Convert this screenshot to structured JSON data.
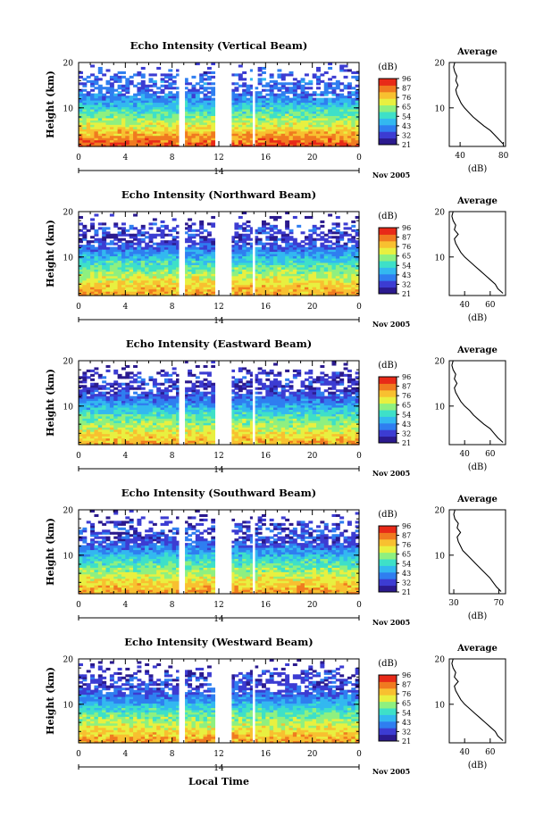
{
  "figure": {
    "x_axis_title": "Local Time",
    "date_label": "Nov 2005",
    "day_label": "14",
    "colorbar_unit": "(dB)",
    "colorbar_ticks": [
      "96",
      "87",
      "76",
      "65",
      "54",
      "43",
      "32",
      "21"
    ],
    "colorscale": [
      "#2b1a8e",
      "#3c3cd2",
      "#2f7ef0",
      "#33b8f0",
      "#3ee0c8",
      "#8ef080",
      "#e8f040",
      "#f8c030",
      "#f07a20",
      "#e82a18"
    ],
    "gap_color": "#ffffff"
  },
  "chart_data": [
    {
      "type": "heatmap",
      "title": "Echo Intensity (Vertical Beam)",
      "ylabel": "Height (km)",
      "x_ticks": [
        "0",
        "4",
        "8",
        "12",
        "16",
        "20",
        "0"
      ],
      "xlim": [
        0,
        24
      ],
      "y_ticks": [
        "20",
        "10"
      ],
      "ylim": [
        1.5,
        20
      ],
      "data_gaps_local_time": [
        [
          8.6,
          9.1
        ],
        [
          11.7,
          12.6
        ],
        [
          12.8,
          13.1
        ],
        [
          14.9,
          15.1
        ]
      ],
      "echo_db_by_height": {
        "height_km": [
          2,
          4,
          6,
          8,
          10,
          12,
          14,
          16,
          18,
          20
        ],
        "db": [
          88,
          80,
          70,
          62,
          52,
          42,
          36,
          38,
          34,
          30
        ]
      },
      "average_profile": {
        "title": "Average",
        "xlabel": "(dB)",
        "x_ticks": [
          "40",
          "80"
        ],
        "xlim": [
          30,
          82
        ],
        "y_ticks": [
          "20",
          "10"
        ],
        "points": [
          [
            80,
            2
          ],
          [
            76,
            3
          ],
          [
            72,
            4
          ],
          [
            68,
            5
          ],
          [
            62,
            6
          ],
          [
            57,
            7
          ],
          [
            52,
            8
          ],
          [
            48,
            9
          ],
          [
            44,
            10
          ],
          [
            41,
            11
          ],
          [
            39,
            12
          ],
          [
            37,
            13
          ],
          [
            36,
            14
          ],
          [
            38,
            15
          ],
          [
            36,
            16
          ],
          [
            37,
            17
          ],
          [
            35,
            18
          ],
          [
            34,
            19
          ],
          [
            35,
            20
          ]
        ]
      }
    },
    {
      "type": "heatmap",
      "title": "Echo Intensity (Northward Beam)",
      "ylabel": "Height (km)",
      "x_ticks": [
        "0",
        "4",
        "8",
        "12",
        "16",
        "20",
        "0"
      ],
      "xlim": [
        0,
        24
      ],
      "y_ticks": [
        "20",
        "10"
      ],
      "ylim": [
        1.5,
        20
      ],
      "data_gaps_local_time": [
        [
          8.6,
          9.1
        ],
        [
          11.7,
          12.6
        ],
        [
          12.8,
          13.1
        ],
        [
          14.9,
          15.1
        ]
      ],
      "echo_db_by_height": {
        "height_km": [
          2,
          4,
          6,
          8,
          10,
          12,
          14,
          16,
          18,
          20
        ],
        "db": [
          80,
          74,
          66,
          58,
          48,
          38,
          30,
          34,
          28,
          26
        ]
      },
      "average_profile": {
        "title": "Average",
        "xlabel": "(dB)",
        "x_ticks": [
          "40",
          "60"
        ],
        "xlim": [
          28,
          72
        ],
        "y_ticks": [
          "20",
          "10"
        ],
        "points": [
          [
            70,
            2
          ],
          [
            66,
            3
          ],
          [
            64,
            4
          ],
          [
            60,
            5
          ],
          [
            56,
            6
          ],
          [
            52,
            7
          ],
          [
            48,
            8
          ],
          [
            44,
            9
          ],
          [
            40,
            10
          ],
          [
            37,
            11
          ],
          [
            35,
            12
          ],
          [
            33,
            13
          ],
          [
            32,
            14
          ],
          [
            35,
            15
          ],
          [
            32,
            16
          ],
          [
            33,
            17
          ],
          [
            31,
            18
          ],
          [
            30,
            19
          ],
          [
            31,
            20
          ]
        ]
      }
    },
    {
      "type": "heatmap",
      "title": "Echo Intensity (Eastward Beam)",
      "ylabel": "Height (km)",
      "x_ticks": [
        "0",
        "4",
        "8",
        "12",
        "16",
        "20",
        "0"
      ],
      "xlim": [
        0,
        24
      ],
      "y_ticks": [
        "20",
        "10"
      ],
      "ylim": [
        1.5,
        20
      ],
      "data_gaps_local_time": [
        [
          8.6,
          9.1
        ],
        [
          11.7,
          12.6
        ],
        [
          12.8,
          13.1
        ],
        [
          14.9,
          15.1
        ]
      ],
      "echo_db_by_height": {
        "height_km": [
          2,
          4,
          6,
          8,
          10,
          12,
          14,
          16,
          18,
          20
        ],
        "db": [
          78,
          72,
          64,
          56,
          46,
          36,
          30,
          32,
          28,
          26
        ]
      },
      "average_profile": {
        "title": "Average",
        "xlabel": "(dB)",
        "x_ticks": [
          "40",
          "60"
        ],
        "xlim": [
          28,
          72
        ],
        "y_ticks": [
          "20",
          "10"
        ],
        "points": [
          [
            70,
            2
          ],
          [
            66,
            3
          ],
          [
            63,
            4
          ],
          [
            60,
            5
          ],
          [
            55,
            6
          ],
          [
            51,
            7
          ],
          [
            47,
            8
          ],
          [
            44,
            9
          ],
          [
            40,
            10
          ],
          [
            37,
            11
          ],
          [
            35,
            12
          ],
          [
            33,
            13
          ],
          [
            32,
            14
          ],
          [
            34,
            15
          ],
          [
            32,
            16
          ],
          [
            33,
            17
          ],
          [
            31,
            18
          ],
          [
            30,
            19
          ],
          [
            31,
            20
          ]
        ]
      }
    },
    {
      "type": "heatmap",
      "title": "Echo Intensity (Southward Beam)",
      "ylabel": "Height (km)",
      "x_ticks": [
        "0",
        "4",
        "8",
        "12",
        "16",
        "20",
        "0"
      ],
      "xlim": [
        0,
        24
      ],
      "y_ticks": [
        "20",
        "10"
      ],
      "ylim": [
        1.5,
        20
      ],
      "data_gaps_local_time": [
        [
          8.6,
          9.1
        ],
        [
          11.7,
          12.6
        ],
        [
          12.8,
          13.1
        ],
        [
          14.9,
          15.1
        ]
      ],
      "echo_db_by_height": {
        "height_km": [
          2,
          4,
          6,
          8,
          10,
          12,
          14,
          16,
          18,
          20
        ],
        "db": [
          80,
          74,
          66,
          58,
          48,
          38,
          32,
          34,
          28,
          26
        ]
      },
      "average_profile": {
        "title": "Average",
        "xlabel": "(dB)",
        "x_ticks": [
          "30",
          "70"
        ],
        "xlim": [
          26,
          76
        ],
        "y_ticks": [
          "20",
          "10"
        ],
        "points": [
          [
            72,
            2
          ],
          [
            68,
            3
          ],
          [
            65,
            4
          ],
          [
            62,
            5
          ],
          [
            58,
            6
          ],
          [
            54,
            7
          ],
          [
            50,
            8
          ],
          [
            46,
            9
          ],
          [
            42,
            10
          ],
          [
            38,
            11
          ],
          [
            36,
            12
          ],
          [
            34,
            13
          ],
          [
            33,
            14
          ],
          [
            36,
            15
          ],
          [
            33,
            16
          ],
          [
            34,
            17
          ],
          [
            31,
            18
          ],
          [
            30,
            19
          ],
          [
            31,
            20
          ]
        ]
      }
    },
    {
      "type": "heatmap",
      "title": "Echo Intensity (Westward Beam)",
      "ylabel": "Height (km)",
      "x_ticks": [
        "0",
        "4",
        "8",
        "12",
        "16",
        "20",
        "0"
      ],
      "xlim": [
        0,
        24
      ],
      "y_ticks": [
        "20",
        "10"
      ],
      "ylim": [
        1.5,
        20
      ],
      "data_gaps_local_time": [
        [
          8.6,
          9.1
        ],
        [
          11.7,
          12.6
        ],
        [
          12.8,
          13.1
        ],
        [
          14.9,
          15.1
        ]
      ],
      "echo_db_by_height": {
        "height_km": [
          2,
          4,
          6,
          8,
          10,
          12,
          14,
          16,
          18,
          20
        ],
        "db": [
          80,
          74,
          66,
          58,
          48,
          38,
          32,
          34,
          28,
          26
        ]
      },
      "average_profile": {
        "title": "Average",
        "xlabel": "(dB)",
        "x_ticks": [
          "40",
          "60"
        ],
        "xlim": [
          28,
          72
        ],
        "y_ticks": [
          "20",
          "10"
        ],
        "points": [
          [
            70,
            2
          ],
          [
            66,
            3
          ],
          [
            64,
            4
          ],
          [
            60,
            5
          ],
          [
            56,
            6
          ],
          [
            52,
            7
          ],
          [
            48,
            8
          ],
          [
            44,
            9
          ],
          [
            40,
            10
          ],
          [
            37,
            11
          ],
          [
            35,
            12
          ],
          [
            33,
            13
          ],
          [
            32,
            14
          ],
          [
            35,
            15
          ],
          [
            32,
            16
          ],
          [
            33,
            17
          ],
          [
            31,
            18
          ],
          [
            30,
            19
          ],
          [
            31,
            20
          ]
        ]
      }
    }
  ]
}
